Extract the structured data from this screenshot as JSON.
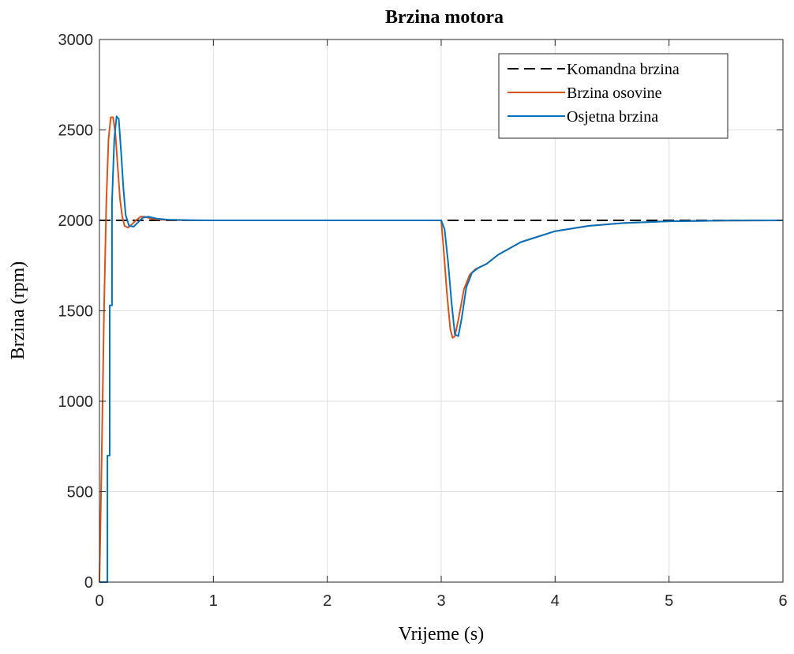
{
  "chart_data": {
    "type": "line",
    "title": "Brzina motora",
    "xlabel": "Vrijeme (s)",
    "ylabel": "Brzina (rpm)",
    "xlim": [
      0,
      6
    ],
    "ylim": [
      0,
      3000
    ],
    "xticks": [
      0,
      1,
      2,
      3,
      4,
      5,
      6
    ],
    "yticks": [
      0,
      500,
      1000,
      1500,
      2000,
      2500,
      3000
    ],
    "grid": true,
    "legend_position": "top-right",
    "series": [
      {
        "name": "Komandna brzina",
        "color": "#000000",
        "style": "dashed",
        "x": [
          0,
          6
        ],
        "y": [
          2000,
          2000
        ]
      },
      {
        "name": "Brzina osovine",
        "color": "#D95319",
        "style": "solid",
        "x": [
          0,
          0.02,
          0.04,
          0.06,
          0.08,
          0.1,
          0.12,
          0.14,
          0.16,
          0.18,
          0.2,
          0.22,
          0.25,
          0.28,
          0.32,
          0.36,
          0.4,
          0.45,
          0.5,
          0.6,
          0.8,
          1.0,
          2.0,
          3.0,
          3.02,
          3.05,
          3.08,
          3.1,
          3.12,
          3.15,
          3.2,
          3.25,
          3.3,
          3.4,
          3.5,
          3.7,
          4.0,
          4.3,
          4.6,
          5.0,
          5.5,
          6.0
        ],
        "y": [
          0,
          700,
          1500,
          2100,
          2450,
          2570,
          2570,
          2480,
          2300,
          2120,
          2020,
          1970,
          1960,
          1975,
          2000,
          2020,
          2020,
          2010,
          2005,
          2002,
          2000,
          2000,
          2000,
          2000,
          1850,
          1600,
          1400,
          1350,
          1360,
          1450,
          1620,
          1700,
          1730,
          1760,
          1810,
          1880,
          1940,
          1970,
          1985,
          1995,
          1999,
          2000
        ]
      },
      {
        "name": "Osjetna brzina",
        "color": "#0072BD",
        "style": "solid",
        "x": [
          0,
          0.06,
          0.07,
          0.07,
          0.09,
          0.09,
          0.11,
          0.11,
          0.13,
          0.15,
          0.17,
          0.19,
          0.21,
          0.23,
          0.26,
          0.3,
          0.34,
          0.38,
          0.43,
          0.5,
          0.6,
          0.8,
          1.0,
          2.0,
          3.0,
          3.03,
          3.06,
          3.09,
          3.12,
          3.15,
          3.18,
          3.22,
          3.27,
          3.32,
          3.4,
          3.5,
          3.7,
          4.0,
          4.3,
          4.6,
          5.0,
          5.5,
          6.0
        ],
        "y": [
          0,
          0,
          0,
          700,
          700,
          1530,
          1530,
          2100,
          2450,
          2575,
          2560,
          2380,
          2180,
          2030,
          1970,
          1965,
          1990,
          2015,
          2020,
          2010,
          2004,
          2001,
          2000,
          2000,
          2000,
          1950,
          1770,
          1550,
          1370,
          1360,
          1460,
          1630,
          1710,
          1735,
          1760,
          1810,
          1880,
          1940,
          1970,
          1985,
          1995,
          1999,
          2000
        ]
      }
    ]
  }
}
